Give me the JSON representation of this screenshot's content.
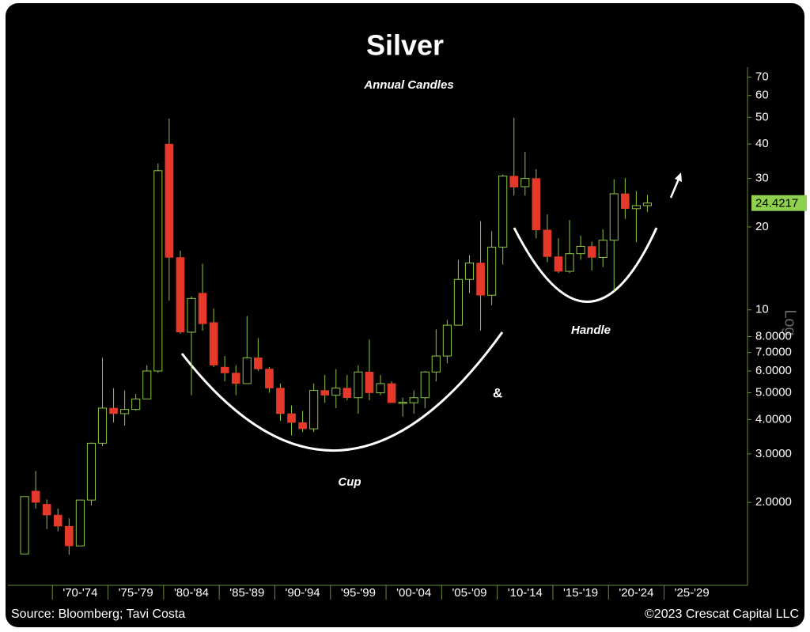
{
  "chart_data": {
    "type": "candlestick",
    "title": "Silver",
    "subtitle": "Annual Candles",
    "axis_label": "Log",
    "annotations": {
      "cup": "Cup",
      "handle": "Handle",
      "and": "&"
    },
    "source": "Source: Bloomberg; Tavi Costa",
    "credit": "©2023 Crescat Capital LLC",
    "log_scale": true,
    "up_color": "#8fc641",
    "down_color": "#e5392b",
    "last_price_color": "#8fd14f",
    "x": [
      1967,
      1968,
      1969,
      1970,
      1971,
      1972,
      1973,
      1974,
      1975,
      1976,
      1977,
      1978,
      1979,
      1980,
      1981,
      1982,
      1983,
      1984,
      1985,
      1986,
      1987,
      1988,
      1989,
      1990,
      1991,
      1992,
      1993,
      1994,
      1995,
      1996,
      1997,
      1998,
      1999,
      2000,
      2001,
      2002,
      2003,
      2004,
      2005,
      2006,
      2007,
      2008,
      2009,
      2010,
      2011,
      2012,
      2013,
      2014,
      2015,
      2016,
      2017,
      2018,
      2019,
      2020,
      2021,
      2022,
      2023
    ],
    "open": [
      1.3,
      2.2,
      1.97,
      1.8,
      1.64,
      1.39,
      2.04,
      3.28,
      4.4,
      4.2,
      4.35,
      4.75,
      6.0,
      40,
      15.5,
      8.3,
      11.5,
      9.0,
      6.2,
      5.9,
      5.4,
      6.7,
      6.1,
      5.2,
      4.2,
      3.9,
      3.7,
      5.1,
      4.9,
      5.2,
      4.8,
      5.95,
      5.0,
      5.4,
      4.58,
      4.6,
      4.8,
      5.95,
      6.8,
      8.8,
      12.9,
      14.8,
      11.3,
      16.9,
      30.6,
      28,
      30,
      19.5,
      15.6,
      13.8,
      16.0,
      17.0,
      15.5,
      17.9,
      26.4,
      23.3,
      23.9
    ],
    "high": [
      2.1,
      2.6,
      2.05,
      1.9,
      1.75,
      2.05,
      3.3,
      6.7,
      5.2,
      5.1,
      4.95,
      6.3,
      34,
      49.5,
      16.4,
      11.2,
      14.7,
      10.1,
      6.8,
      6.3,
      9.5,
      7.9,
      6.2,
      5.4,
      4.5,
      4.3,
      5.4,
      5.8,
      6.1,
      5.8,
      6.3,
      7.8,
      5.8,
      5.5,
      4.8,
      5.1,
      6.0,
      8.5,
      9.2,
      15.2,
      15.8,
      21,
      19.3,
      31,
      49.8,
      37.5,
      32.4,
      22.2,
      18.2,
      21.2,
      18.6,
      17.7,
      19.6,
      29.8,
      30.1,
      27.0,
      26.1
    ],
    "low": [
      1.3,
      1.9,
      1.6,
      1.57,
      1.29,
      1.39,
      1.95,
      3.2,
      3.9,
      3.8,
      4.3,
      4.8,
      5.9,
      10.8,
      8.2,
      4.9,
      8.4,
      6.2,
      5.5,
      4.9,
      5.4,
      6.0,
      5.0,
      3.95,
      3.5,
      3.6,
      3.6,
      4.6,
      4.4,
      4.7,
      4.2,
      4.7,
      4.9,
      4.6,
      4.1,
      4.2,
      4.4,
      5.5,
      6.4,
      8.8,
      11.5,
      8.4,
      10.4,
      14.6,
      26,
      26,
      18.2,
      14.9,
      13.6,
      13.6,
      15.2,
      13.9,
      14.3,
      11.7,
      21.4,
      17.6,
      22.7
    ],
    "close": [
      2.1,
      2.0,
      1.8,
      1.64,
      1.39,
      2.04,
      3.28,
      4.4,
      4.2,
      4.35,
      4.75,
      6.0,
      32.0,
      15.5,
      8.3,
      11.0,
      8.9,
      6.3,
      5.9,
      5.4,
      6.7,
      6.1,
      5.2,
      4.2,
      3.9,
      3.7,
      5.1,
      4.9,
      5.2,
      4.8,
      5.95,
      5.0,
      5.4,
      4.6,
      4.62,
      4.8,
      5.95,
      6.8,
      8.8,
      12.9,
      14.8,
      11.3,
      16.9,
      30.6,
      27.9,
      30,
      19.5,
      15.6,
      13.8,
      16.0,
      17.0,
      15.5,
      17.9,
      26.4,
      23.3,
      23.9,
      24.4217
    ],
    "xlim": [
      1965.5,
      2032
    ],
    "xticks": [
      {
        "value": 1970,
        "label": "'70-'74"
      },
      {
        "value": 1975,
        "label": "'75-'79"
      },
      {
        "value": 1980,
        "label": "'80-'84"
      },
      {
        "value": 1985,
        "label": "'85-'89"
      },
      {
        "value": 1990,
        "label": "'90-'94"
      },
      {
        "value": 1995,
        "label": "'95-'99"
      },
      {
        "value": 2000,
        "label": "'00-'04"
      },
      {
        "value": 2005,
        "label": "'05-'09"
      },
      {
        "value": 2010,
        "label": "'10-'14"
      },
      {
        "value": 2015,
        "label": "'15-'19"
      },
      {
        "value": 2020,
        "label": "'20-'24"
      },
      {
        "value": 2025,
        "label": "'25-'29"
      }
    ],
    "ylim": [
      1,
      76
    ],
    "yticks": [
      70,
      60,
      50,
      40,
      30,
      20,
      10,
      {
        "value": 8,
        "label": "8.0000"
      },
      {
        "value": 7,
        "label": "7.0000"
      },
      {
        "value": 6,
        "label": "6.0000"
      },
      {
        "value": 5,
        "label": "5.0000"
      },
      {
        "value": 4,
        "label": "4.0000"
      },
      {
        "value": 3,
        "label": "3.0000"
      },
      {
        "value": 2,
        "label": "2.0000"
      }
    ]
  }
}
